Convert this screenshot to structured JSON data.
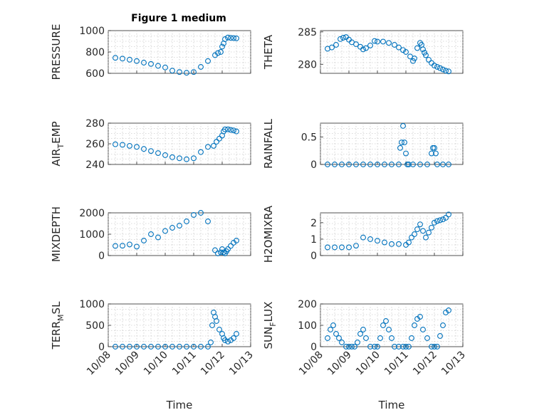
{
  "figure": {
    "title": "Figure 1 medium",
    "marker_color": "#0072BD"
  },
  "time_ticks": [
    "10/08",
    "10/09",
    "10/10",
    "10/11",
    "10/12",
    "10/13"
  ],
  "chart_data": [
    {
      "type": "scatter",
      "id": "pressure",
      "ylabel": "PRESSURE",
      "xlim": [
        0,
        5
      ],
      "ylim": [
        600,
        1000
      ],
      "yticks": [
        600,
        800,
        1000
      ],
      "x": [
        0.25,
        0.5,
        0.75,
        1.0,
        1.25,
        1.5,
        1.75,
        2.0,
        2.25,
        2.5,
        2.75,
        3.0,
        3.25,
        3.5,
        3.75,
        3.85,
        3.95,
        4.0,
        4.05,
        4.1,
        4.2,
        4.3,
        4.4,
        4.5
      ],
      "y": [
        745,
        738,
        728,
        715,
        700,
        688,
        670,
        655,
        625,
        612,
        605,
        612,
        660,
        715,
        770,
        790,
        800,
        850,
        880,
        920,
        935,
        932,
        930,
        928
      ]
    },
    {
      "type": "scatter",
      "id": "theta",
      "ylabel": "THETA",
      "xlim": [
        0,
        5
      ],
      "ylim": [
        278.6,
        285.2
      ],
      "yticks": [
        280,
        285
      ],
      "x": [
        0.25,
        0.4,
        0.55,
        0.7,
        0.8,
        0.9,
        1.0,
        1.1,
        1.25,
        1.4,
        1.5,
        1.6,
        1.75,
        1.9,
        2.0,
        2.2,
        2.4,
        2.6,
        2.75,
        2.9,
        3.0,
        3.15,
        3.25,
        3.3,
        3.4,
        3.5,
        3.55,
        3.6,
        3.65,
        3.7,
        3.8,
        3.9,
        4.0,
        4.1,
        4.2,
        4.3,
        4.4,
        4.5
      ],
      "y": [
        282.4,
        282.6,
        283.0,
        283.9,
        284.1,
        284.2,
        283.8,
        283.4,
        283.1,
        282.7,
        282.3,
        282.5,
        282.9,
        283.6,
        283.5,
        283.5,
        283.3,
        283.0,
        282.6,
        282.2,
        281.9,
        281.2,
        280.5,
        280.9,
        282.5,
        283.3,
        283.0,
        282.3,
        281.8,
        281.4,
        280.7,
        280.2,
        279.8,
        279.6,
        279.4,
        279.2,
        279.0,
        278.9
      ]
    },
    {
      "type": "scatter",
      "id": "air_temp",
      "ylabel": "AIRTEMP",
      "ylabel_parts": [
        "AIR",
        "T",
        "EMP"
      ],
      "xlim": [
        0,
        5
      ],
      "ylim": [
        240,
        280
      ],
      "yticks": [
        240,
        260,
        280
      ],
      "x": [
        0.25,
        0.5,
        0.75,
        1.0,
        1.25,
        1.5,
        1.75,
        2.0,
        2.25,
        2.5,
        2.75,
        3.0,
        3.25,
        3.5,
        3.7,
        3.8,
        3.9,
        4.0,
        4.05,
        4.1,
        4.2,
        4.3,
        4.4,
        4.5
      ],
      "y": [
        259.5,
        259,
        258,
        257,
        255,
        253,
        251,
        249,
        247,
        246,
        245,
        246,
        252,
        257,
        258,
        262,
        265,
        268,
        272,
        274,
        274,
        273.5,
        273,
        272
      ]
    },
    {
      "type": "scatter",
      "id": "rainfall",
      "ylabel": "RAINFALL",
      "xlim": [
        0,
        5
      ],
      "ylim": [
        0,
        0.75
      ],
      "yticks": [
        0,
        0.5
      ],
      "x": [
        0.25,
        0.5,
        0.75,
        1.0,
        1.25,
        1.5,
        1.75,
        2.0,
        2.25,
        2.5,
        2.75,
        2.8,
        2.85,
        2.9,
        2.95,
        3.0,
        3.05,
        3.1,
        3.25,
        3.5,
        3.75,
        3.9,
        3.95,
        4.0,
        4.05,
        4.1,
        4.3,
        4.5
      ],
      "y": [
        0,
        0,
        0,
        0,
        0,
        0,
        0,
        0,
        0,
        0,
        0,
        0.3,
        0.4,
        0.7,
        0.4,
        0.2,
        0,
        0,
        0,
        0,
        0,
        0.2,
        0.3,
        0.3,
        0.2,
        0,
        0,
        0
      ]
    },
    {
      "type": "scatter",
      "id": "mixdepth",
      "ylabel": "MIXDEPTH",
      "xlim": [
        0,
        5
      ],
      "ylim": [
        0,
        2000
      ],
      "yticks": [
        0,
        1000,
        2000
      ],
      "x": [
        0.25,
        0.5,
        0.75,
        1.0,
        1.25,
        1.5,
        1.75,
        2.0,
        2.25,
        2.5,
        2.75,
        3.0,
        3.25,
        3.5,
        3.75,
        3.85,
        3.95,
        4.0,
        4.05,
        4.1,
        4.15,
        4.2,
        4.3,
        4.4,
        4.5
      ],
      "y": [
        450,
        460,
        520,
        420,
        700,
        1000,
        850,
        1150,
        1300,
        1400,
        1600,
        1900,
        2000,
        1600,
        250,
        100,
        150,
        300,
        150,
        100,
        200,
        300,
        450,
        600,
        700
      ]
    },
    {
      "type": "scatter",
      "id": "h2omixra",
      "ylabel": "H2OMIXRA",
      "xlim": [
        0,
        5
      ],
      "ylim": [
        0,
        2.6
      ],
      "yticks": [
        0,
        1,
        2
      ],
      "x": [
        0.25,
        0.5,
        0.75,
        1.0,
        1.25,
        1.5,
        1.75,
        2.0,
        2.25,
        2.5,
        2.75,
        3.0,
        3.1,
        3.2,
        3.3,
        3.4,
        3.5,
        3.6,
        3.7,
        3.8,
        3.9,
        4.0,
        4.1,
        4.2,
        4.3,
        4.4,
        4.5
      ],
      "y": [
        0.5,
        0.5,
        0.5,
        0.5,
        0.6,
        1.1,
        1.0,
        0.9,
        0.8,
        0.7,
        0.7,
        0.65,
        0.8,
        1.1,
        1.3,
        1.6,
        1.9,
        1.5,
        1.1,
        1.4,
        1.7,
        2.0,
        2.1,
        2.15,
        2.2,
        2.3,
        2.5
      ]
    },
    {
      "type": "scatter",
      "id": "terr_msl",
      "ylabel": "TERRMSL",
      "ylabel_parts": [
        "TERR",
        "M",
        "SL"
      ],
      "xlim": [
        0,
        5
      ],
      "ylim": [
        0,
        1000
      ],
      "yticks": [
        0,
        500,
        1000
      ],
      "x": [
        0.25,
        0.5,
        0.75,
        1.0,
        1.25,
        1.5,
        1.75,
        2.0,
        2.25,
        2.5,
        2.75,
        3.0,
        3.25,
        3.5,
        3.6,
        3.65,
        3.7,
        3.75,
        3.8,
        3.9,
        4.0,
        4.05,
        4.1,
        4.2,
        4.3,
        4.4,
        4.5
      ],
      "y": [
        0,
        0,
        0,
        0,
        0,
        0,
        0,
        0,
        0,
        0,
        0,
        0,
        0,
        0,
        100,
        500,
        800,
        700,
        600,
        400,
        300,
        200,
        150,
        120,
        150,
        200,
        300
      ]
    },
    {
      "type": "scatter",
      "id": "sun_flux",
      "ylabel": "SUNFLUX",
      "ylabel_parts": [
        "SUN",
        "F",
        "LUX"
      ],
      "xlim": [
        0,
        5
      ],
      "ylim": [
        0,
        200
      ],
      "yticks": [
        0,
        100,
        200
      ],
      "x": [
        0.25,
        0.35,
        0.45,
        0.55,
        0.65,
        0.75,
        0.9,
        1.0,
        1.1,
        1.2,
        1.3,
        1.4,
        1.5,
        1.6,
        1.75,
        1.9,
        2.0,
        2.1,
        2.2,
        2.3,
        2.4,
        2.5,
        2.6,
        2.75,
        2.9,
        3.0,
        3.1,
        3.2,
        3.3,
        3.4,
        3.5,
        3.6,
        3.75,
        3.9,
        4.0,
        4.1,
        4.2,
        4.3,
        4.4,
        4.5
      ],
      "y": [
        40,
        80,
        100,
        60,
        40,
        20,
        0,
        0,
        0,
        0,
        20,
        60,
        80,
        40,
        0,
        0,
        0,
        40,
        100,
        120,
        80,
        40,
        0,
        0,
        0,
        0,
        0,
        40,
        100,
        130,
        140,
        80,
        40,
        0,
        0,
        0,
        50,
        100,
        160,
        170
      ]
    }
  ],
  "xlabel": "Time"
}
